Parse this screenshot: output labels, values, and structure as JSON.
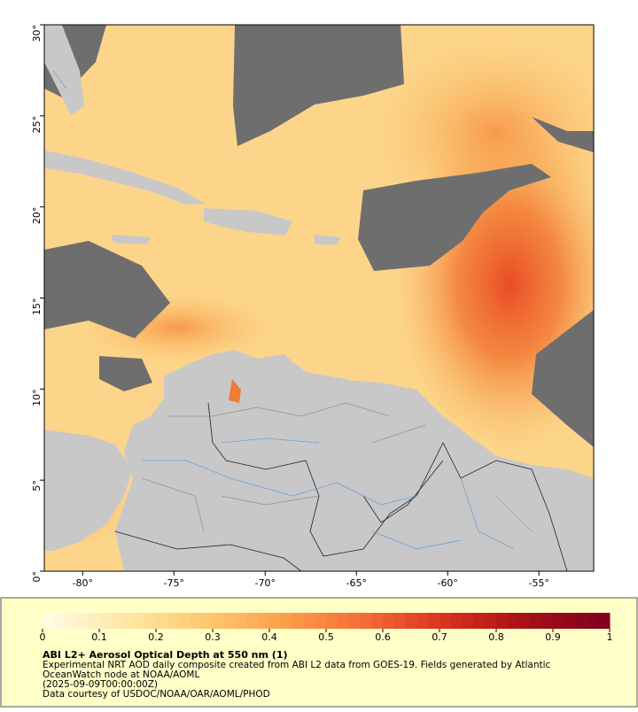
{
  "map": {
    "xlim": [
      -82.1,
      -52.0
    ],
    "xticks": [
      {
        "value": -80,
        "label": "-80°"
      },
      {
        "value": -75,
        "label": "-75°"
      },
      {
        "value": -70,
        "label": "-70°"
      },
      {
        "value": -65,
        "label": "-65°"
      },
      {
        "value": -60,
        "label": "-60°"
      },
      {
        "value": -55,
        "label": "-55°"
      }
    ],
    "ylim": [
      0,
      30
    ],
    "yticks": [
      {
        "value": 0,
        "label": "0°"
      },
      {
        "value": 5,
        "label": "5°"
      },
      {
        "value": 10,
        "label": "10°"
      },
      {
        "value": 15,
        "label": "15°"
      },
      {
        "value": 20,
        "label": "20°"
      },
      {
        "value": 25,
        "label": "25°"
      },
      {
        "value": 30,
        "label": "30°"
      }
    ]
  },
  "colorbar": {
    "lim": [
      0,
      1
    ],
    "ticks": [
      0,
      0.1,
      0.2,
      0.3,
      0.4,
      0.5,
      0.6,
      0.7,
      0.8,
      0.9,
      1
    ],
    "colors": [
      "#fffbe6",
      "#fee8a8",
      "#fec970",
      "#fd9e4a",
      "#f46a35",
      "#d7301f",
      "#a50f15",
      "#7f0020"
    ]
  },
  "caption": {
    "title": "ABI L2+ Aerosol Optical Depth at 550 nm (1)",
    "lines": [
      "Experimental NRT AOD daily composite created from ABI L2 data from GOES-19. Fields generated by Atlantic",
      "OceanWatch node at NOAA/AOML",
      "(2025-09-09T00:00:00Z)",
      "Data courtesy of USDOC/NOAA/OAR/AOML/PHOD"
    ]
  }
}
